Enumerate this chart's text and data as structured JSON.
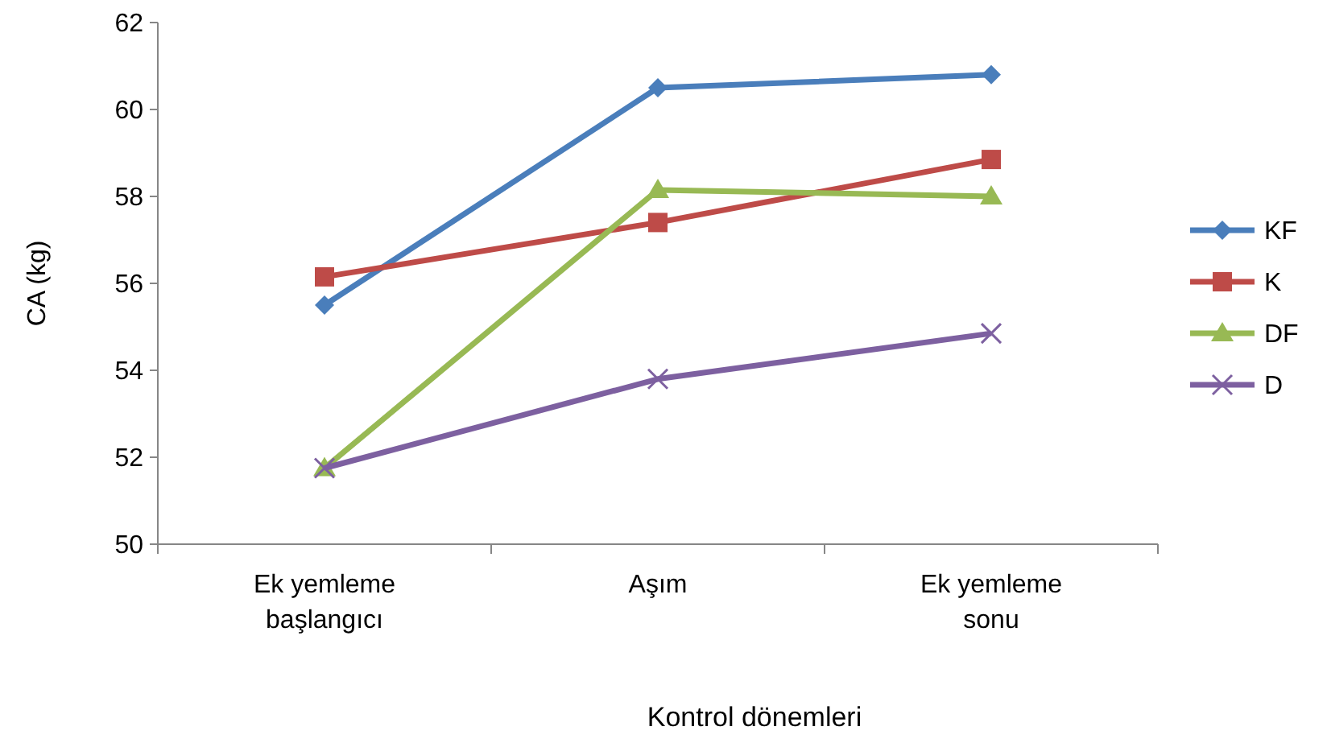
{
  "chart_data": {
    "type": "line",
    "xlabel": "Kontrol dönemleri",
    "ylabel": "CA (kg)",
    "categories": [
      "Ek yemleme başlangıcı",
      "Aşım",
      "Ek yemleme sonu"
    ],
    "ylim": [
      50,
      62
    ],
    "yticks": [
      50,
      52,
      54,
      56,
      58,
      60,
      62
    ],
    "grid": false,
    "legend": "right",
    "series": [
      {
        "name": "KF",
        "color": "#4a7ebb",
        "marker": "diamond",
        "values": [
          55.5,
          60.5,
          60.8
        ]
      },
      {
        "name": "K",
        "color": "#be4b48",
        "marker": "square",
        "values": [
          56.15,
          57.4,
          58.85
        ]
      },
      {
        "name": "DF",
        "color": "#98b954",
        "marker": "triangle",
        "values": [
          51.75,
          58.15,
          58.0
        ]
      },
      {
        "name": "D",
        "color": "#7d60a0",
        "marker": "cross",
        "values": [
          51.75,
          53.8,
          54.85
        ]
      }
    ]
  }
}
